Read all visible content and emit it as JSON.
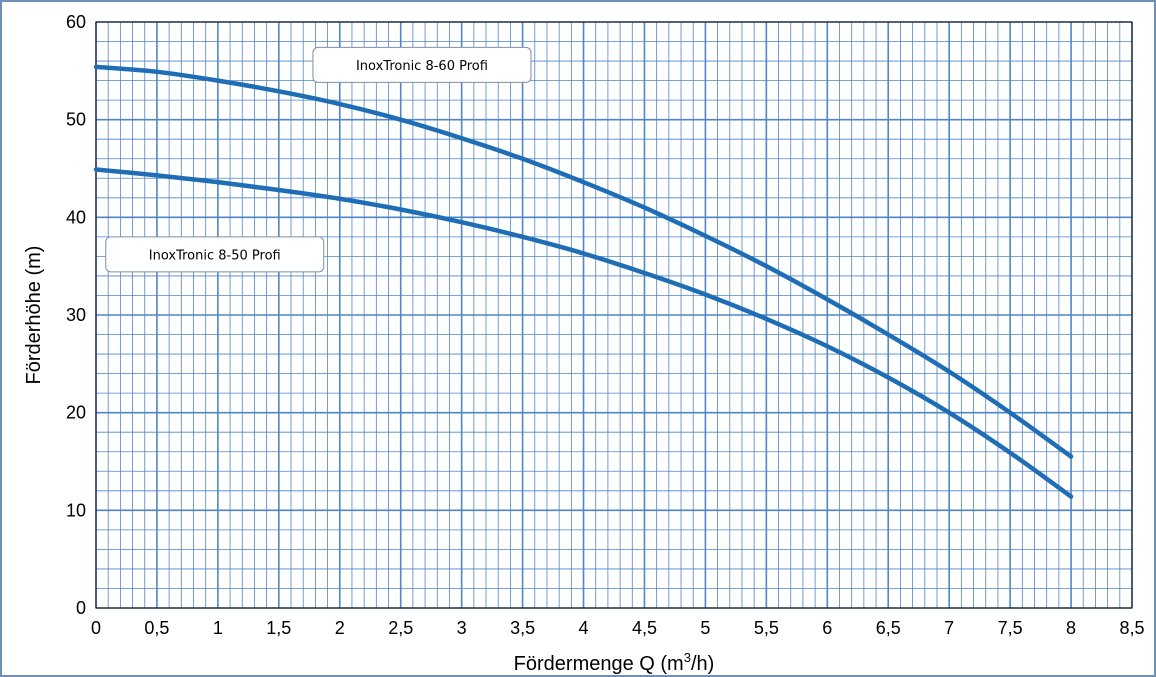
{
  "chart_data": {
    "type": "line",
    "xlabel": "Fördermenge Q (m",
    "xlabel_sup": "3",
    "xlabel_end": "/h)",
    "ylabel": "Förderhöhe (m)",
    "xlim": [
      0,
      8.5
    ],
    "ylim": [
      0,
      60
    ],
    "x_ticks": [
      "0",
      "0,5",
      "1",
      "1,5",
      "2",
      "2,5",
      "3",
      "3,5",
      "4",
      "4,5",
      "5",
      "5,5",
      "6",
      "6,5",
      "7",
      "7,5",
      "8",
      "8,5"
    ],
    "y_ticks": [
      "0",
      "10",
      "20",
      "30",
      "40",
      "50",
      "60"
    ],
    "grid": true,
    "line_color": "#1f6eb5",
    "grid_color": "#4f86c6",
    "series": [
      {
        "name": "InoxTronic 8-60 Profi",
        "x": [
          0,
          0.5,
          1,
          1.5,
          2,
          2.5,
          3,
          3.5,
          4,
          4.5,
          5,
          5.5,
          6,
          6.5,
          7,
          7.5,
          8
        ],
        "y": [
          55.4,
          54.9,
          54.0,
          52.9,
          51.6,
          50.0,
          48.1,
          46.0,
          43.6,
          41.0,
          38.1,
          35.0,
          31.6,
          28.0,
          24.2,
          20.0,
          15.5
        ]
      },
      {
        "name": "InoxTronic 8-50 Profi",
        "x": [
          0,
          0.5,
          1,
          1.5,
          2,
          2.5,
          3,
          3.5,
          4,
          4.5,
          5,
          5.5,
          6,
          6.5,
          7,
          7.5,
          8
        ],
        "y": [
          44.9,
          44.3,
          43.6,
          42.8,
          41.9,
          40.8,
          39.5,
          38.0,
          36.3,
          34.3,
          32.1,
          29.6,
          26.8,
          23.6,
          20.0,
          15.9,
          11.4
        ]
      }
    ]
  }
}
